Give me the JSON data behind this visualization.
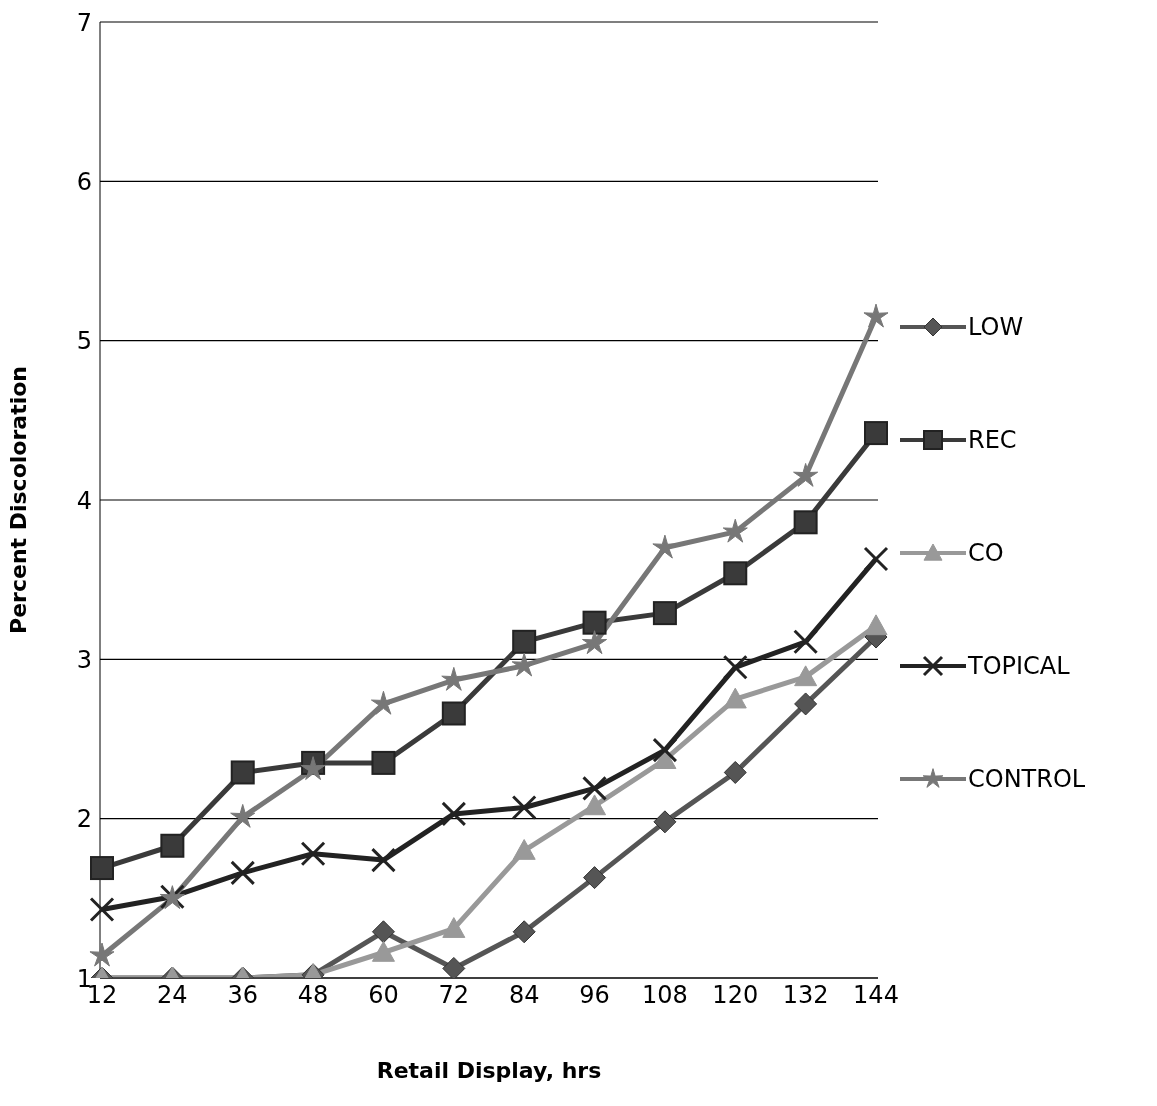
{
  "chart_data": {
    "type": "line",
    "xlabel": "Retail Display, hrs",
    "ylabel": "Percent Discoloration",
    "categories": [
      "12",
      "24",
      "36",
      "48",
      "60",
      "72",
      "84",
      "96",
      "108",
      "120",
      "132",
      "144"
    ],
    "ylim": [
      1,
      7
    ],
    "yticks": [
      1,
      2,
      3,
      4,
      5,
      6,
      7
    ],
    "grid": "y",
    "legend": "right",
    "line_style": "solid",
    "series": [
      {
        "name": "LOW",
        "color": "#555555",
        "marker": "diamond",
        "values": [
          1.0,
          1.0,
          1.0,
          1.02,
          1.29,
          1.06,
          1.29,
          1.63,
          1.98,
          2.29,
          2.72,
          3.14
        ]
      },
      {
        "name": "REC",
        "color": "#3a3a3a",
        "marker": "square",
        "values": [
          1.69,
          1.83,
          2.29,
          2.35,
          2.35,
          2.66,
          3.11,
          3.23,
          3.29,
          3.54,
          3.86,
          4.42
        ]
      },
      {
        "name": "CO",
        "color": "#999999",
        "marker": "triangle",
        "values": [
          1.0,
          1.0,
          1.0,
          1.02,
          1.16,
          1.31,
          1.8,
          2.08,
          2.37,
          2.75,
          2.89,
          3.21
        ]
      },
      {
        "name": "TOPICAL",
        "color": "#222222",
        "marker": "cross",
        "values": [
          1.43,
          1.51,
          1.66,
          1.78,
          1.74,
          2.03,
          2.07,
          2.19,
          2.43,
          2.95,
          3.11,
          3.63
        ]
      },
      {
        "name": "CONTROL",
        "color": "#777777",
        "marker": "star",
        "values": [
          1.14,
          1.5,
          2.01,
          2.31,
          2.72,
          2.87,
          2.96,
          3.1,
          3.7,
          3.8,
          4.15,
          5.15
        ]
      }
    ]
  }
}
